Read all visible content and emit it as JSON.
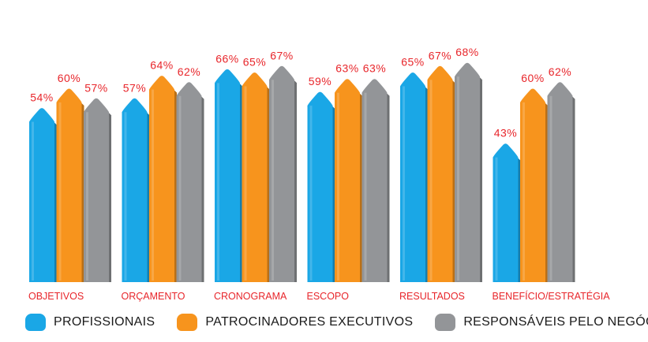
{
  "chart_data": {
    "type": "bar",
    "categories": [
      "OBJETIVOS",
      "ORÇAMENTO",
      "CRONOGRAMA",
      "ESCOPO",
      "RESULTADOS",
      "BENEFÍCIO/ESTRATÉGIA"
    ],
    "series": [
      {
        "name": "PROFISSIONAIS",
        "color": "#1aa7e6",
        "values": [
          54,
          57,
          66,
          59,
          65,
          43
        ]
      },
      {
        "name": "PATROCINADORES EXECUTIVOS",
        "color": "#f7941d",
        "values": [
          60,
          64,
          65,
          63,
          67,
          60
        ]
      },
      {
        "name": "RESPONSÁVEIS PELO NEGÓCIO",
        "color": "#939598",
        "values": [
          57,
          62,
          67,
          63,
          68,
          62
        ]
      }
    ],
    "value_suffix": "%",
    "label_color": "#e8262b",
    "category_color": "#e8262b",
    "legend_position": "bottom",
    "grid": false
  }
}
